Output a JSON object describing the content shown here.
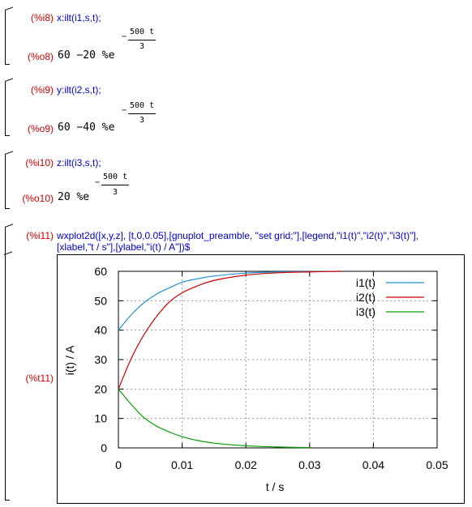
{
  "cells": [
    {
      "in_label": "(%i8)",
      "input": "x:ilt(i1,s,t);",
      "out_label": "(%o8)",
      "out_prefix": "60 −20 %e",
      "exp_minus": "−",
      "exp_num": "500 t",
      "exp_den": "3"
    },
    {
      "in_label": "(%i9)",
      "input": "y:ilt(i2,s,t);",
      "out_label": "(%o9)",
      "out_prefix": "60 −40 %e",
      "exp_minus": "−",
      "exp_num": "500 t",
      "exp_den": "3"
    },
    {
      "in_label": "(%i10)",
      "input": "z:ilt(i3,s,t);",
      "out_label": "(%o10)",
      "out_prefix": "20 %e",
      "exp_minus": "−",
      "exp_num": "500 t",
      "exp_den": "3"
    }
  ],
  "plot_cell": {
    "in_label": "(%i11)",
    "input_line1": "wxplot2d([x,y,z], [t,0,0.05],[gnuplot_preamble, \"set grid;\"],[legend,\"i1(t)\",\"i2(t)\",\"i3(t)\"],",
    "input_line2": "[xlabel,\"t / s\"],[ylabel,\"i(t) / A\"])$",
    "out_label": "(%t11)"
  },
  "chart_data": {
    "type": "line",
    "xlabel": "t / s",
    "ylabel": "i(t) / A",
    "xlim": [
      0,
      0.05
    ],
    "ylim": [
      0,
      60
    ],
    "xticks": [
      "0",
      "0.01",
      "0.02",
      "0.03",
      "0.04",
      "0.05"
    ],
    "yticks": [
      "0",
      "10",
      "20",
      "30",
      "40",
      "50",
      "60"
    ],
    "grid": true,
    "legend_position": "top-right",
    "series": [
      {
        "name": "i1(t)",
        "color": "#1f8fd6",
        "x": [
          0,
          0.002,
          0.004,
          0.006,
          0.008,
          0.01,
          0.012,
          0.015,
          0.02,
          0.025,
          0.03,
          0.035
        ],
        "y": [
          40,
          45.2,
          49.3,
          52.3,
          54.4,
          56.3,
          57.3,
          58.4,
          59.4,
          59.8,
          59.9,
          60
        ]
      },
      {
        "name": "i2(t)",
        "color": "#d00000",
        "x": [
          0,
          0.002,
          0.004,
          0.006,
          0.008,
          0.01,
          0.012,
          0.015,
          0.02,
          0.025,
          0.03,
          0.035
        ],
        "y": [
          20,
          30.3,
          38.4,
          44.7,
          49.6,
          52.7,
          54.7,
          56.9,
          58.7,
          59.5,
          59.8,
          60
        ]
      },
      {
        "name": "i3(t)",
        "color": "#00a000",
        "x": [
          0,
          0.002,
          0.004,
          0.006,
          0.008,
          0.01,
          0.012,
          0.015,
          0.02,
          0.025,
          0.03
        ],
        "y": [
          20,
          14.8,
          10.3,
          7.4,
          5.4,
          3.8,
          2.7,
          1.6,
          0.7,
          0.3,
          0.1
        ]
      }
    ]
  }
}
